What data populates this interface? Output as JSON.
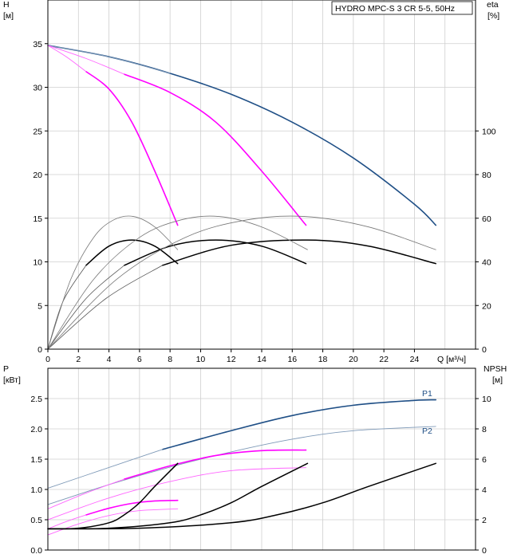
{
  "chart_data": [
    {
      "type": "line",
      "title": "HYDRO MPC-S 3 CR 5-5, 50Hz",
      "ylabel": [
        "H",
        "[м]"
      ],
      "y2label": [
        "eta",
        "[%]"
      ],
      "xlabel": "Q [м³/ч]",
      "xlim": [
        0,
        28
      ],
      "ylim": [
        0,
        40
      ],
      "y2lim": [
        0,
        160
      ],
      "x_ticks": [
        "0",
        "2",
        "4",
        "6",
        "8",
        "10",
        "12",
        "14",
        "16",
        "18",
        "20",
        "22",
        "24"
      ],
      "y_ticks": [
        "0",
        "5",
        "10",
        "15",
        "20",
        "25",
        "30",
        "35"
      ],
      "y2_ticks": [
        "0",
        "20",
        "40",
        "60",
        "80",
        "100"
      ],
      "series": [
        {
          "name": "H 3 pumps",
          "color": "#1f4f86",
          "width": 1.6,
          "x": [
            0,
            4,
            8,
            12,
            16,
            20,
            24,
            25.4
          ],
          "y": [
            34.8,
            33.5,
            31.6,
            29.2,
            26.0,
            21.9,
            16.6,
            14.2
          ]
        },
        {
          "name": "H 3 pumps (extension)",
          "color": "#7f9ab8",
          "width": 0.9,
          "x": [
            0,
            4,
            8
          ],
          "y": [
            34.8,
            33.5,
            31.6
          ]
        },
        {
          "name": "H 2 pumps",
          "color": "#ff00ff",
          "width": 1.6,
          "x": [
            5,
            8,
            11,
            14,
            16.9
          ],
          "y": [
            31.5,
            29.4,
            26.0,
            20.4,
            14.2
          ]
        },
        {
          "name": "H 2 pumps (extension)",
          "color": "#ff66ff",
          "width": 0.9,
          "x": [
            0,
            2.5,
            5
          ],
          "y": [
            34.8,
            33.3,
            31.5
          ]
        },
        {
          "name": "H 1 pump",
          "color": "#ff00ff",
          "width": 1.6,
          "x": [
            2.5,
            4,
            5.5,
            7,
            8.5
          ],
          "y": [
            31.8,
            29.8,
            26.0,
            20.4,
            14.2
          ]
        },
        {
          "name": "H 1 pump (extension)",
          "color": "#ff66ff",
          "width": 0.9,
          "x": [
            0,
            1.2,
            2.5
          ],
          "y": [
            34.8,
            33.5,
            31.8
          ]
        },
        {
          "name": "eta 1 pump",
          "color": "#000000",
          "width": 1.5,
          "x": [
            2.5,
            4,
            5.5,
            7,
            8.5
          ],
          "y": [
            9.6,
            11.8,
            12.5,
            11.8,
            9.8
          ]
        },
        {
          "name": "eta 1 pump (extension)",
          "color": "#555555",
          "width": 0.8,
          "x": [
            0,
            1,
            2.5
          ],
          "y": [
            0,
            5.5,
            9.6
          ]
        },
        {
          "name": "eta 2 pumps",
          "color": "#000000",
          "width": 1.5,
          "x": [
            5,
            8,
            11,
            14,
            16.9
          ],
          "y": [
            9.6,
            11.8,
            12.5,
            11.8,
            9.8
          ]
        },
        {
          "name": "eta 2 pumps (extension)",
          "color": "#555555",
          "width": 0.8,
          "x": [
            0,
            2.5,
            5
          ],
          "y": [
            0,
            5.8,
            9.6
          ]
        },
        {
          "name": "eta 3 pumps",
          "color": "#000000",
          "width": 1.5,
          "x": [
            7.5,
            12,
            17,
            21,
            25.4
          ],
          "y": [
            9.6,
            11.9,
            12.5,
            11.8,
            9.8
          ]
        },
        {
          "name": "eta 3 pumps (extension)",
          "color": "#555555",
          "width": 0.8,
          "x": [
            0,
            3.8,
            7.5
          ],
          "y": [
            0,
            5.8,
            9.6
          ]
        },
        {
          "name": "eta 1 pump (max line)",
          "color": "#777777",
          "width": 0.8,
          "x": [
            0,
            1.5,
            3,
            4.3,
            5.6,
            7,
            8.5
          ],
          "y": [
            0,
            8.0,
            12.8,
            14.8,
            15.2,
            14.0,
            11.4
          ]
        },
        {
          "name": "eta 2 pumps (max line)",
          "color": "#777777",
          "width": 0.8,
          "x": [
            0,
            3,
            6,
            8.7,
            11.2,
            14,
            17
          ],
          "y": [
            0,
            8.0,
            12.8,
            14.8,
            15.2,
            14.0,
            11.4
          ]
        },
        {
          "name": "eta 3 pumps (max line)",
          "color": "#777777",
          "width": 0.8,
          "x": [
            0,
            4.5,
            9,
            13,
            16.8,
            21,
            25.4
          ],
          "y": [
            0,
            8.0,
            12.8,
            14.8,
            15.2,
            14.0,
            11.4
          ]
        }
      ]
    },
    {
      "type": "line",
      "ylabel": [
        "P",
        "[кВт]"
      ],
      "y2label": [
        "NPSH",
        "[м]"
      ],
      "xlim": [
        0,
        28
      ],
      "ylim": [
        0,
        3.0
      ],
      "y2lim": [
        0,
        12
      ],
      "y_ticks": [
        "0.0",
        "0.5",
        "1.0",
        "1.5",
        "2.0",
        "2.5"
      ],
      "y2_ticks": [
        "0",
        "2",
        "4",
        "6",
        "8",
        "10"
      ],
      "curve_labels": [
        {
          "text": "P1",
          "x": 24.5,
          "y": 2.5,
          "color": "#1f4f86"
        },
        {
          "text": "P2",
          "x": 24.5,
          "y": 1.88,
          "color": "#1f4f86"
        }
      ],
      "series": [
        {
          "name": "P1 3 pumps",
          "color": "#1f4f86",
          "width": 1.6,
          "x": [
            7.5,
            12,
            16,
            20,
            24,
            25.4
          ],
          "y": [
            1.66,
            1.97,
            2.22,
            2.39,
            2.47,
            2.48
          ]
        },
        {
          "name": "P1 3 pumps (extension)",
          "color": "#7f9ab8",
          "width": 0.9,
          "x": [
            0,
            3.5,
            7.5
          ],
          "y": [
            1.02,
            1.32,
            1.66
          ]
        },
        {
          "name": "P2 3 pumps",
          "color": "#7f9ab8",
          "width": 0.9,
          "x": [
            0,
            4,
            8,
            12,
            16,
            20,
            25.4
          ],
          "y": [
            0.75,
            1.08,
            1.37,
            1.62,
            1.83,
            1.97,
            2.04
          ]
        },
        {
          "name": "P1 2 pumps",
          "color": "#ff00ff",
          "width": 1.6,
          "x": [
            5,
            8,
            11,
            14,
            16.9
          ],
          "y": [
            1.17,
            1.39,
            1.56,
            1.64,
            1.65
          ]
        },
        {
          "name": "P1 2 pumps (extension)",
          "color": "#ff66ff",
          "width": 0.9,
          "x": [
            0,
            2.5,
            5
          ],
          "y": [
            0.68,
            0.94,
            1.17
          ]
        },
        {
          "name": "P2 2 pumps",
          "color": "#ff66ff",
          "width": 0.9,
          "x": [
            0,
            4,
            8,
            12,
            16.9
          ],
          "y": [
            0.5,
            0.86,
            1.13,
            1.31,
            1.36
          ]
        },
        {
          "name": "P1 1 pump",
          "color": "#ff00ff",
          "width": 1.6,
          "x": [
            2.5,
            4,
            5.5,
            7,
            8.5
          ],
          "y": [
            0.58,
            0.69,
            0.77,
            0.81,
            0.82
          ]
        },
        {
          "name": "P1 1 pump (extension)",
          "color": "#ff66ff",
          "width": 0.9,
          "x": [
            0,
            1.2,
            2.5
          ],
          "y": [
            0.35,
            0.47,
            0.58
          ]
        },
        {
          "name": "P2 1 pump",
          "color": "#ff66ff",
          "width": 0.9,
          "x": [
            0,
            2,
            4,
            6,
            8.5
          ],
          "y": [
            0.25,
            0.43,
            0.57,
            0.65,
            0.68
          ]
        },
        {
          "name": "NPSH 1 pump",
          "color": "#000000",
          "width": 1.5,
          "x": [
            0,
            2,
            4,
            5,
            6,
            7,
            8.5
          ],
          "y": [
            0.35,
            0.36,
            0.45,
            0.58,
            0.78,
            1.05,
            1.43
          ]
        },
        {
          "name": "NPSH 2 pumps",
          "color": "#000000",
          "width": 1.5,
          "x": [
            0,
            4,
            8,
            10,
            12,
            14,
            17
          ],
          "y": [
            0.35,
            0.36,
            0.45,
            0.58,
            0.78,
            1.05,
            1.43
          ]
        },
        {
          "name": "NPSH 3 pumps",
          "color": "#000000",
          "width": 1.5,
          "x": [
            0,
            6,
            12,
            15,
            18,
            21,
            25.4
          ],
          "y": [
            0.35,
            0.36,
            0.45,
            0.58,
            0.78,
            1.05,
            1.43
          ]
        }
      ]
    }
  ]
}
